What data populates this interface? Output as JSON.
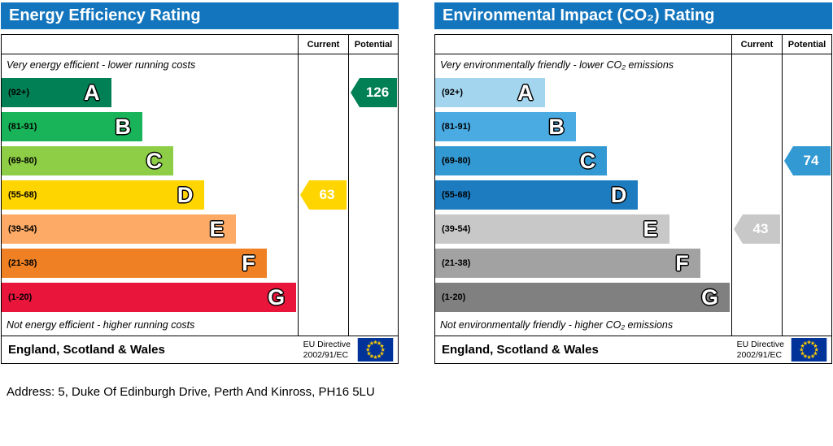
{
  "address_line": "Address: 5, Duke Of Edinburgh Drive, Perth And Kinross, PH16 5LU",
  "colors": {
    "title_bar": "#1375bd",
    "flag_blue": "#003399",
    "star_yellow": "#ffcc00"
  },
  "chart_data": [
    {
      "type": "bar",
      "title": "Energy Efficiency Rating",
      "columns": {
        "current": "Current",
        "potential": "Potential"
      },
      "caption_top": "Very energy efficient - lower running costs",
      "caption_bottom": "Not energy efficient - higher running costs",
      "bands": [
        {
          "letter": "A",
          "range": "(92+)",
          "min": 92,
          "max": 100,
          "color": "#008054",
          "width": "37%"
        },
        {
          "letter": "B",
          "range": "(81-91)",
          "min": 81,
          "max": 91,
          "color": "#19b459",
          "width": "47.5%"
        },
        {
          "letter": "C",
          "range": "(69-80)",
          "min": 69,
          "max": 80,
          "color": "#8dce46",
          "width": "58%"
        },
        {
          "letter": "D",
          "range": "(55-68)",
          "min": 55,
          "max": 68,
          "color": "#ffd500",
          "width": "68.5%"
        },
        {
          "letter": "E",
          "range": "(39-54)",
          "min": 39,
          "max": 54,
          "color": "#fcaa65",
          "width": "79%"
        },
        {
          "letter": "F",
          "range": "(21-38)",
          "min": 21,
          "max": 38,
          "color": "#ef8023",
          "width": "89.5%"
        },
        {
          "letter": "G",
          "range": "(1-20)",
          "min": 1,
          "max": 20,
          "color": "#e9153b",
          "width": "99.5%"
        }
      ],
      "current": {
        "value": 63,
        "band": "D",
        "row": 3,
        "color": "#ffd500"
      },
      "potential": {
        "value": 126,
        "band": "A",
        "row": 0,
        "color": "#008054"
      },
      "footer": {
        "region": "England, Scotland & Wales",
        "directive": [
          "EU Directive",
          "2002/91/EC"
        ]
      }
    },
    {
      "type": "bar",
      "title": "Environmental Impact (CO₂) Rating",
      "columns": {
        "current": "Current",
        "potential": "Potential"
      },
      "caption_top": "Very environmentally friendly - lower CO₂ emissions",
      "caption_bottom": "Not environmentally friendly - higher CO₂ emissions",
      "bands": [
        {
          "letter": "A",
          "range": "(92+)",
          "min": 92,
          "max": 100,
          "color": "#a3d5ef",
          "width": "37%"
        },
        {
          "letter": "B",
          "range": "(81-91)",
          "min": 81,
          "max": 91,
          "color": "#4aabe2",
          "width": "47.5%"
        },
        {
          "letter": "C",
          "range": "(69-80)",
          "min": 69,
          "max": 80,
          "color": "#3399d3",
          "width": "58%"
        },
        {
          "letter": "D",
          "range": "(55-68)",
          "min": 55,
          "max": 68,
          "color": "#1d7cc0",
          "width": "68.5%"
        },
        {
          "letter": "E",
          "range": "(39-54)",
          "min": 39,
          "max": 54,
          "color": "#c8c8c8",
          "width": "79%"
        },
        {
          "letter": "F",
          "range": "(21-38)",
          "min": 21,
          "max": 38,
          "color": "#a2a2a2",
          "width": "89.5%"
        },
        {
          "letter": "G",
          "range": "(1-20)",
          "min": 1,
          "max": 20,
          "color": "#808080",
          "width": "99.5%"
        }
      ],
      "current": {
        "value": 43,
        "band": "E",
        "row": 4,
        "color": "#c8c8c8"
      },
      "potential": {
        "value": 74,
        "band": "C",
        "row": 2,
        "color": "#3399d3"
      },
      "footer": {
        "region": "England, Scotland & Wales",
        "directive": [
          "EU Directive",
          "2002/91/EC"
        ]
      }
    }
  ]
}
